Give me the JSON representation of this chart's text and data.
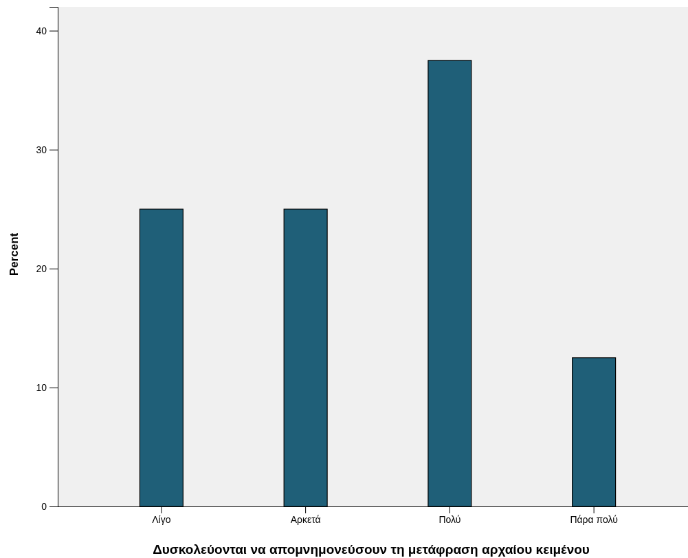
{
  "chart_data": {
    "type": "bar",
    "xlabel": "Δυσκολεύονται να απομνημονεύσουν τη μετάφραση αρχαίου κειμένου",
    "ylabel": "Percent",
    "categories": [
      "Λίγο",
      "Αρκετά",
      "Πολύ",
      "Πάρα πολύ"
    ],
    "values": [
      25,
      25,
      37.5,
      12.5
    ],
    "color": "#1f5f78",
    "ylim": [
      0,
      42
    ],
    "yticks": [
      0,
      10,
      20,
      30,
      40
    ],
    "grid": false
  }
}
